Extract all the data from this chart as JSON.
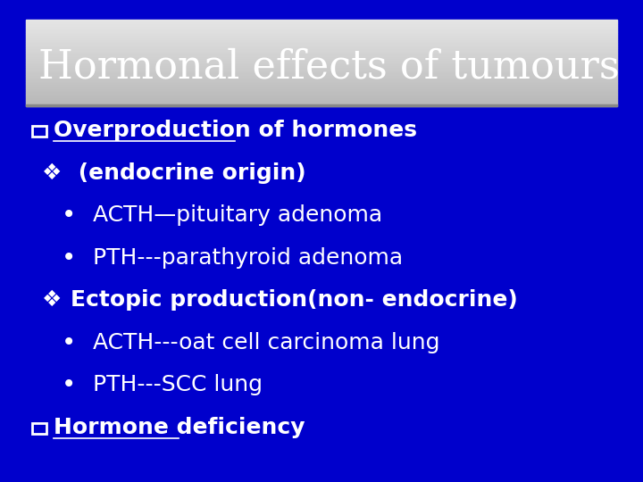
{
  "background_color": "#0000cc",
  "title_text": "Hormonal effects of tumours",
  "title_text_color": "#ffffff",
  "title_fontsize": 32,
  "content_text_color": "#ffffff",
  "content_fontsize": 18,
  "lines": [
    {
      "type": "checkbox_bold_underline",
      "text": "Overproduction of hormones",
      "indent": 0.05
    },
    {
      "type": "diamond_bold",
      "text": " (endocrine origin)",
      "indent": 0.07
    },
    {
      "type": "bullet",
      "text": " ACTH—pituitary adenoma",
      "indent": 0.1
    },
    {
      "type": "bullet",
      "text": " PTH---parathyroid adenoma",
      "indent": 0.1
    },
    {
      "type": "diamond_bold",
      "text": "Ectopic production(non- endocrine)",
      "indent": 0.07
    },
    {
      "type": "bullet",
      "text": " ACTH---oat cell carcinoma lung",
      "indent": 0.1
    },
    {
      "type": "bullet",
      "text": " PTH---SCC lung",
      "indent": 0.1
    },
    {
      "type": "checkbox_bold_underline",
      "text": "Hormone deficiency",
      "indent": 0.05
    }
  ]
}
